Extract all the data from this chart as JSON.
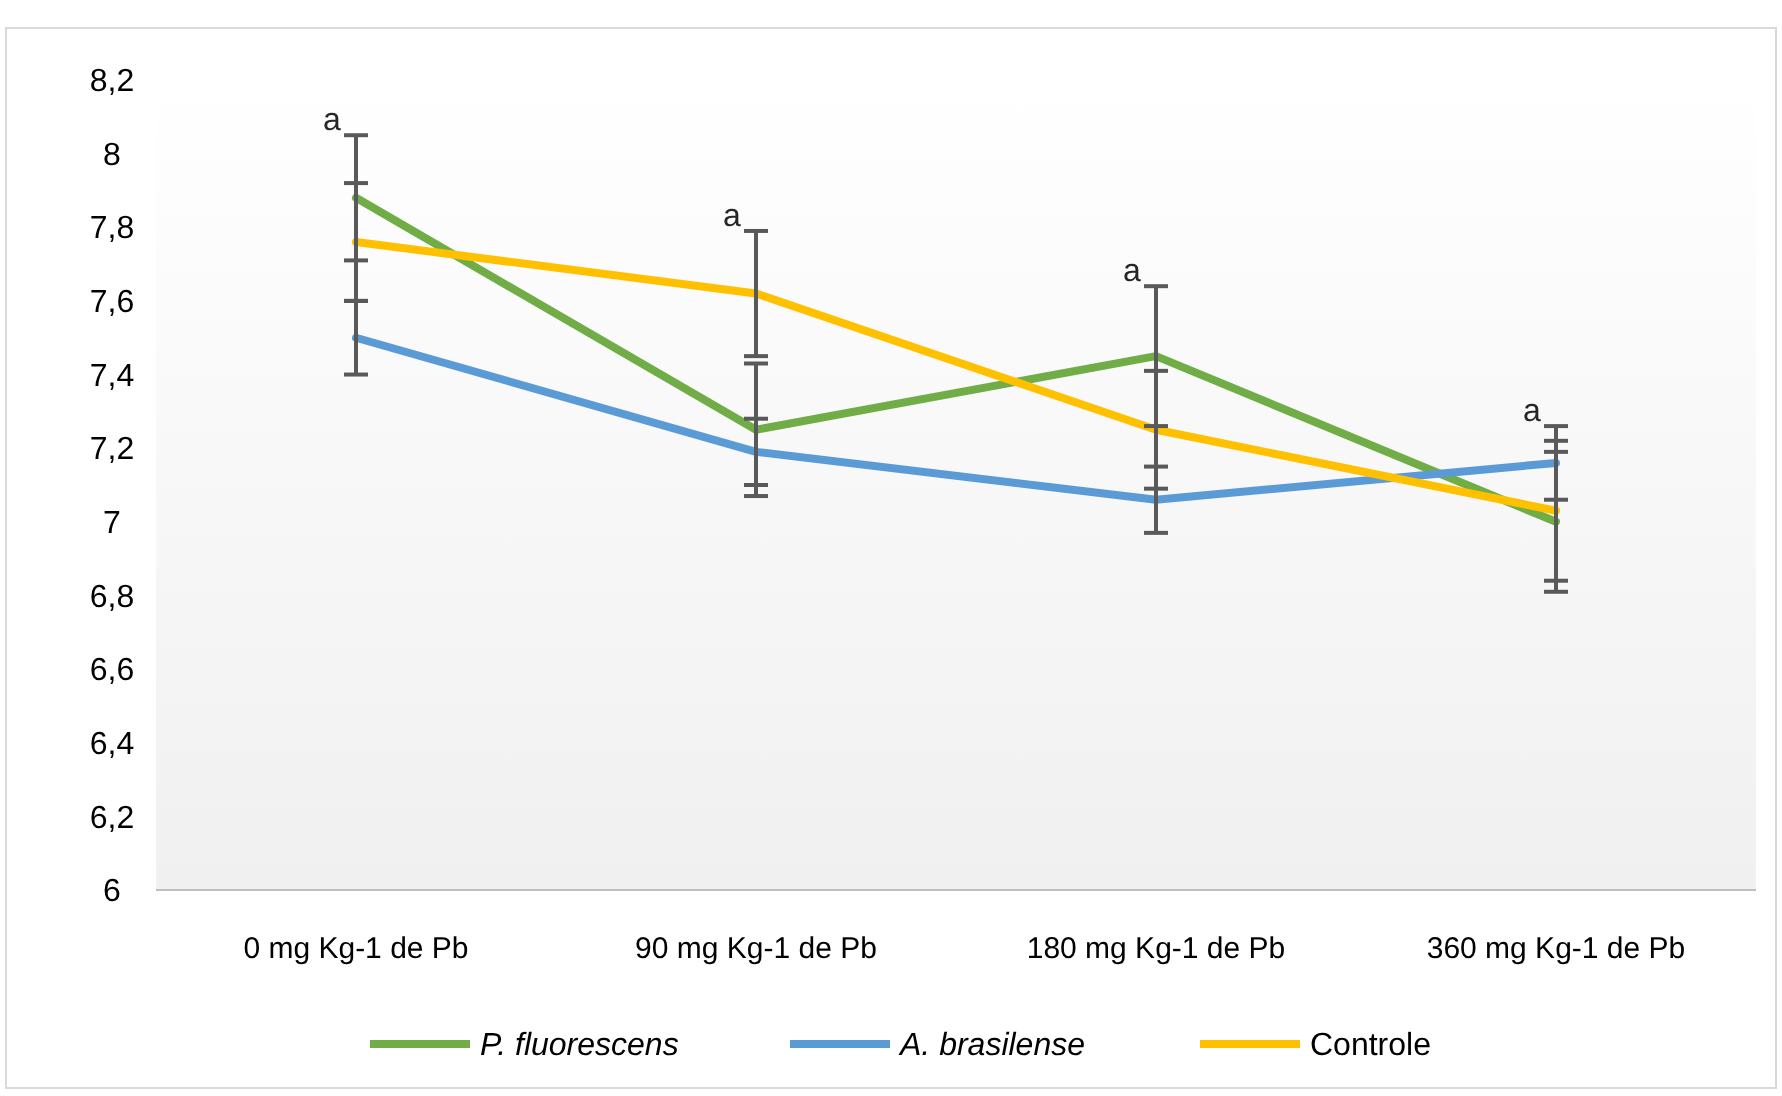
{
  "chart_data": {
    "type": "line",
    "categories": [
      "0 mg Kg-1 de Pb",
      "90 mg Kg-1 de Pb",
      "180 mg Kg-1 de Pb",
      "360 mg Kg-1 de Pb"
    ],
    "series": [
      {
        "name": "P. fluorescens",
        "color": "#70ad47",
        "values": [
          7.88,
          7.25,
          7.45,
          7.0
        ],
        "errors": [
          0.17,
          0.18,
          0.19,
          0.19
        ]
      },
      {
        "name": "A. brasilense",
        "color": "#5b9bd5",
        "values": [
          7.5,
          7.19,
          7.06,
          7.16
        ],
        "errors": [
          0.1,
          0.09,
          0.09,
          0.1
        ]
      },
      {
        "name": "Controle",
        "color": "#ffc000",
        "values": [
          7.76,
          7.62,
          7.25,
          7.03
        ],
        "errors": [
          0.16,
          0.17,
          0.16,
          0.19
        ]
      }
    ],
    "ylim": [
      6,
      8.2
    ],
    "yticks": [
      {
        "value": 6,
        "label": "6"
      },
      {
        "value": 6.2,
        "label": "6,2"
      },
      {
        "value": 6.4,
        "label": "6,4"
      },
      {
        "value": 6.6,
        "label": "6,6"
      },
      {
        "value": 6.8,
        "label": "6,8"
      },
      {
        "value": 7,
        "label": "7"
      },
      {
        "value": 7.2,
        "label": "7,2"
      },
      {
        "value": 7.4,
        "label": "7,4"
      },
      {
        "value": 7.6,
        "label": "7,6"
      },
      {
        "value": 7.8,
        "label": "7,8"
      },
      {
        "value": 8,
        "label": "8"
      },
      {
        "value": 8.2,
        "label": "8,2"
      }
    ],
    "grid": false,
    "legend": "bottom",
    "marker": "none",
    "line_style": "solid",
    "annotations": [
      "a",
      "a",
      "a",
      "a"
    ]
  }
}
